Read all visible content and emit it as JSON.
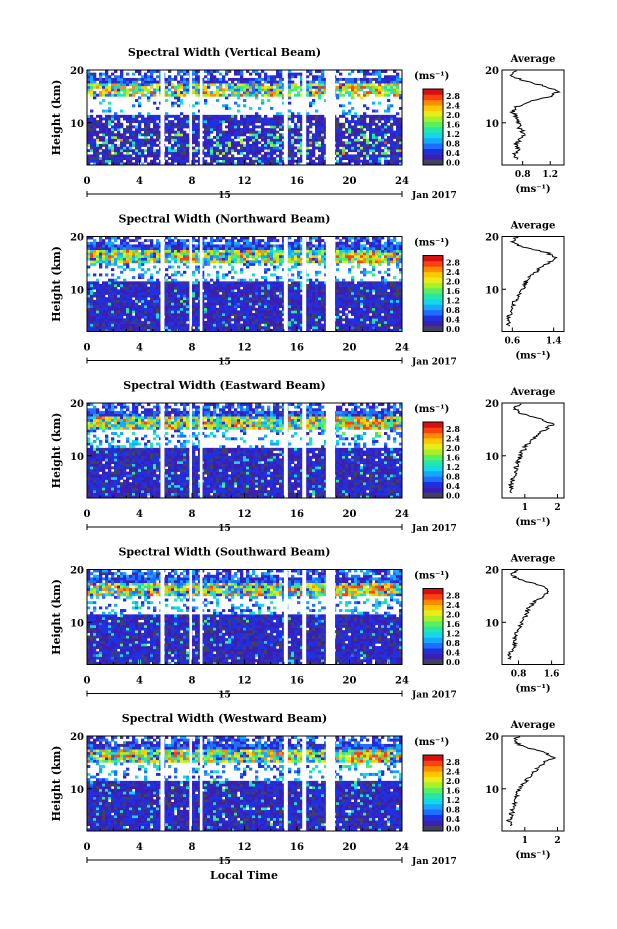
{
  "figure": {
    "xlabel_bottom": "Local Time",
    "date_label": "Jan 2017",
    "day_label": "15"
  },
  "colorbar": {
    "unit_label": "(ms⁻¹)",
    "ticks": [
      "0.0",
      "0.4",
      "0.8",
      "1.2",
      "1.6",
      "2.0",
      "2.4",
      "2.8"
    ],
    "colors": [
      "#404060",
      "#3a1fb0",
      "#2030e0",
      "#1e6fff",
      "#14a8ff",
      "#14d8e8",
      "#28e6a8",
      "#58ef60",
      "#a8f028",
      "#e8ec18",
      "#ffc800",
      "#ff8c00",
      "#ff4010",
      "#d41010"
    ]
  },
  "chart_data": [
    {
      "type": "heatmap",
      "title": "Spectral Width (Vertical Beam)",
      "ylabel": "Height (km)",
      "xlabel": "Local Time",
      "xlim": [
        0,
        24
      ],
      "ylim": [
        2,
        20
      ],
      "xticks": [
        0,
        4,
        8,
        12,
        16,
        20,
        24
      ],
      "yticks": [
        10,
        20
      ],
      "gaps_hours": [
        [
          5.6,
          5.9
        ],
        [
          7.8,
          8.0
        ],
        [
          8.6,
          8.8
        ],
        [
          15.0,
          15.3
        ],
        [
          16.4,
          16.7
        ],
        [
          18.2,
          18.9
        ]
      ],
      "colorbar_range": [
        0.0,
        2.8
      ],
      "average_profile": {
        "title": "Average",
        "xlabel": "(ms⁻¹)",
        "xlim": [
          0.5,
          1.4
        ],
        "xticks": [
          0.8,
          1.2
        ],
        "height_km": [
          3,
          4,
          5,
          6,
          7,
          8,
          9,
          10,
          11,
          12,
          13,
          14,
          15,
          16,
          17,
          18,
          19,
          20
        ],
        "values": [
          0.72,
          0.68,
          0.74,
          0.7,
          0.78,
          0.82,
          0.76,
          0.74,
          0.72,
          0.66,
          0.7,
          0.9,
          1.2,
          1.32,
          1.1,
          0.8,
          0.62,
          0.7
        ]
      }
    },
    {
      "type": "heatmap",
      "title": "Spectral Width (Northward Beam)",
      "ylabel": "Height (km)",
      "xlabel": "Local Time",
      "xlim": [
        0,
        24
      ],
      "ylim": [
        2,
        20
      ],
      "xticks": [
        0,
        4,
        8,
        12,
        16,
        20,
        24
      ],
      "yticks": [
        10,
        20
      ],
      "gaps_hours": [
        [
          5.6,
          5.9
        ],
        [
          7.8,
          8.0
        ],
        [
          8.6,
          8.8
        ],
        [
          15.0,
          15.3
        ],
        [
          16.4,
          16.7
        ],
        [
          18.2,
          18.9
        ]
      ],
      "colorbar_range": [
        0.0,
        2.8
      ],
      "average_profile": {
        "title": "Average",
        "xlabel": "(ms⁻¹)",
        "xlim": [
          0.4,
          1.6
        ],
        "xticks": [
          0.6,
          1.4
        ],
        "height_km": [
          3,
          4,
          5,
          6,
          7,
          8,
          9,
          10,
          11,
          12,
          13,
          14,
          15,
          16,
          17,
          18,
          19,
          20
        ],
        "values": [
          0.55,
          0.5,
          0.55,
          0.6,
          0.62,
          0.66,
          0.72,
          0.78,
          0.85,
          0.92,
          1.02,
          1.15,
          1.3,
          1.45,
          1.25,
          0.8,
          0.58,
          0.7
        ]
      }
    },
    {
      "type": "heatmap",
      "title": "Spectral Width (Eastward Beam)",
      "ylabel": "Height (km)",
      "xlabel": "Local Time",
      "xlim": [
        0,
        24
      ],
      "ylim": [
        2,
        20
      ],
      "xticks": [
        0,
        4,
        8,
        12,
        16,
        20,
        24
      ],
      "yticks": [
        10,
        20
      ],
      "gaps_hours": [
        [
          5.6,
          5.9
        ],
        [
          7.8,
          8.0
        ],
        [
          8.6,
          8.8
        ],
        [
          15.0,
          15.3
        ],
        [
          16.4,
          16.7
        ],
        [
          18.2,
          18.9
        ]
      ],
      "colorbar_range": [
        0.0,
        2.8
      ],
      "average_profile": {
        "title": "Average",
        "xlabel": "(ms⁻¹)",
        "xlim": [
          0.3,
          2.2
        ],
        "xticks": [
          1,
          2
        ],
        "height_km": [
          3,
          4,
          5,
          6,
          7,
          8,
          9,
          10,
          11,
          12,
          13,
          14,
          15,
          16,
          17,
          18,
          19,
          20
        ],
        "values": [
          0.6,
          0.55,
          0.62,
          0.65,
          0.7,
          0.75,
          0.8,
          0.85,
          0.95,
          1.05,
          1.2,
          1.4,
          1.65,
          1.85,
          1.5,
          0.9,
          0.7,
          0.85
        ]
      }
    },
    {
      "type": "heatmap",
      "title": "Spectral Width (Southward Beam)",
      "ylabel": "Height (km)",
      "xlabel": "Local Time",
      "xlim": [
        0,
        24
      ],
      "ylim": [
        2,
        20
      ],
      "xticks": [
        0,
        4,
        8,
        12,
        16,
        20,
        24
      ],
      "yticks": [
        10,
        20
      ],
      "gaps_hours": [
        [
          5.6,
          5.9
        ],
        [
          7.8,
          8.0
        ],
        [
          8.6,
          8.8
        ],
        [
          15.0,
          15.3
        ],
        [
          16.4,
          16.7
        ],
        [
          18.2,
          18.9
        ]
      ],
      "colorbar_range": [
        0.0,
        2.8
      ],
      "average_profile": {
        "title": "Average",
        "xlabel": "(ms⁻¹)",
        "xlim": [
          0.4,
          1.9
        ],
        "xticks": [
          0.8,
          1.6
        ],
        "height_km": [
          3,
          4,
          5,
          6,
          7,
          8,
          9,
          10,
          11,
          12,
          13,
          14,
          15,
          16,
          17,
          18,
          19,
          20
        ],
        "values": [
          0.62,
          0.58,
          0.66,
          0.7,
          0.72,
          0.76,
          0.82,
          0.88,
          0.95,
          1.0,
          1.08,
          1.2,
          1.4,
          1.55,
          1.3,
          0.85,
          0.62,
          0.75
        ]
      }
    },
    {
      "type": "heatmap",
      "title": "Spectral Width (Westward Beam)",
      "ylabel": "Height (km)",
      "xlabel": "Local Time",
      "xlim": [
        0,
        24
      ],
      "ylim": [
        2,
        20
      ],
      "xticks": [
        0,
        4,
        8,
        12,
        16,
        20,
        24
      ],
      "yticks": [
        10,
        20
      ],
      "gaps_hours": [
        [
          5.6,
          5.9
        ],
        [
          7.8,
          8.0
        ],
        [
          8.6,
          8.8
        ],
        [
          15.0,
          15.3
        ],
        [
          16.4,
          16.7
        ],
        [
          18.2,
          18.9
        ]
      ],
      "colorbar_range": [
        0.0,
        2.8
      ],
      "average_profile": {
        "title": "Average",
        "xlabel": "(ms⁻¹)",
        "xlim": [
          0.3,
          2.2
        ],
        "xticks": [
          1,
          2
        ],
        "height_km": [
          3,
          4,
          5,
          6,
          7,
          8,
          9,
          10,
          11,
          12,
          13,
          14,
          15,
          16,
          17,
          18,
          19,
          20
        ],
        "values": [
          0.55,
          0.52,
          0.58,
          0.62,
          0.66,
          0.72,
          0.78,
          0.85,
          0.95,
          1.1,
          1.25,
          1.4,
          1.6,
          1.9,
          1.55,
          0.95,
          0.68,
          0.8
        ]
      }
    }
  ]
}
